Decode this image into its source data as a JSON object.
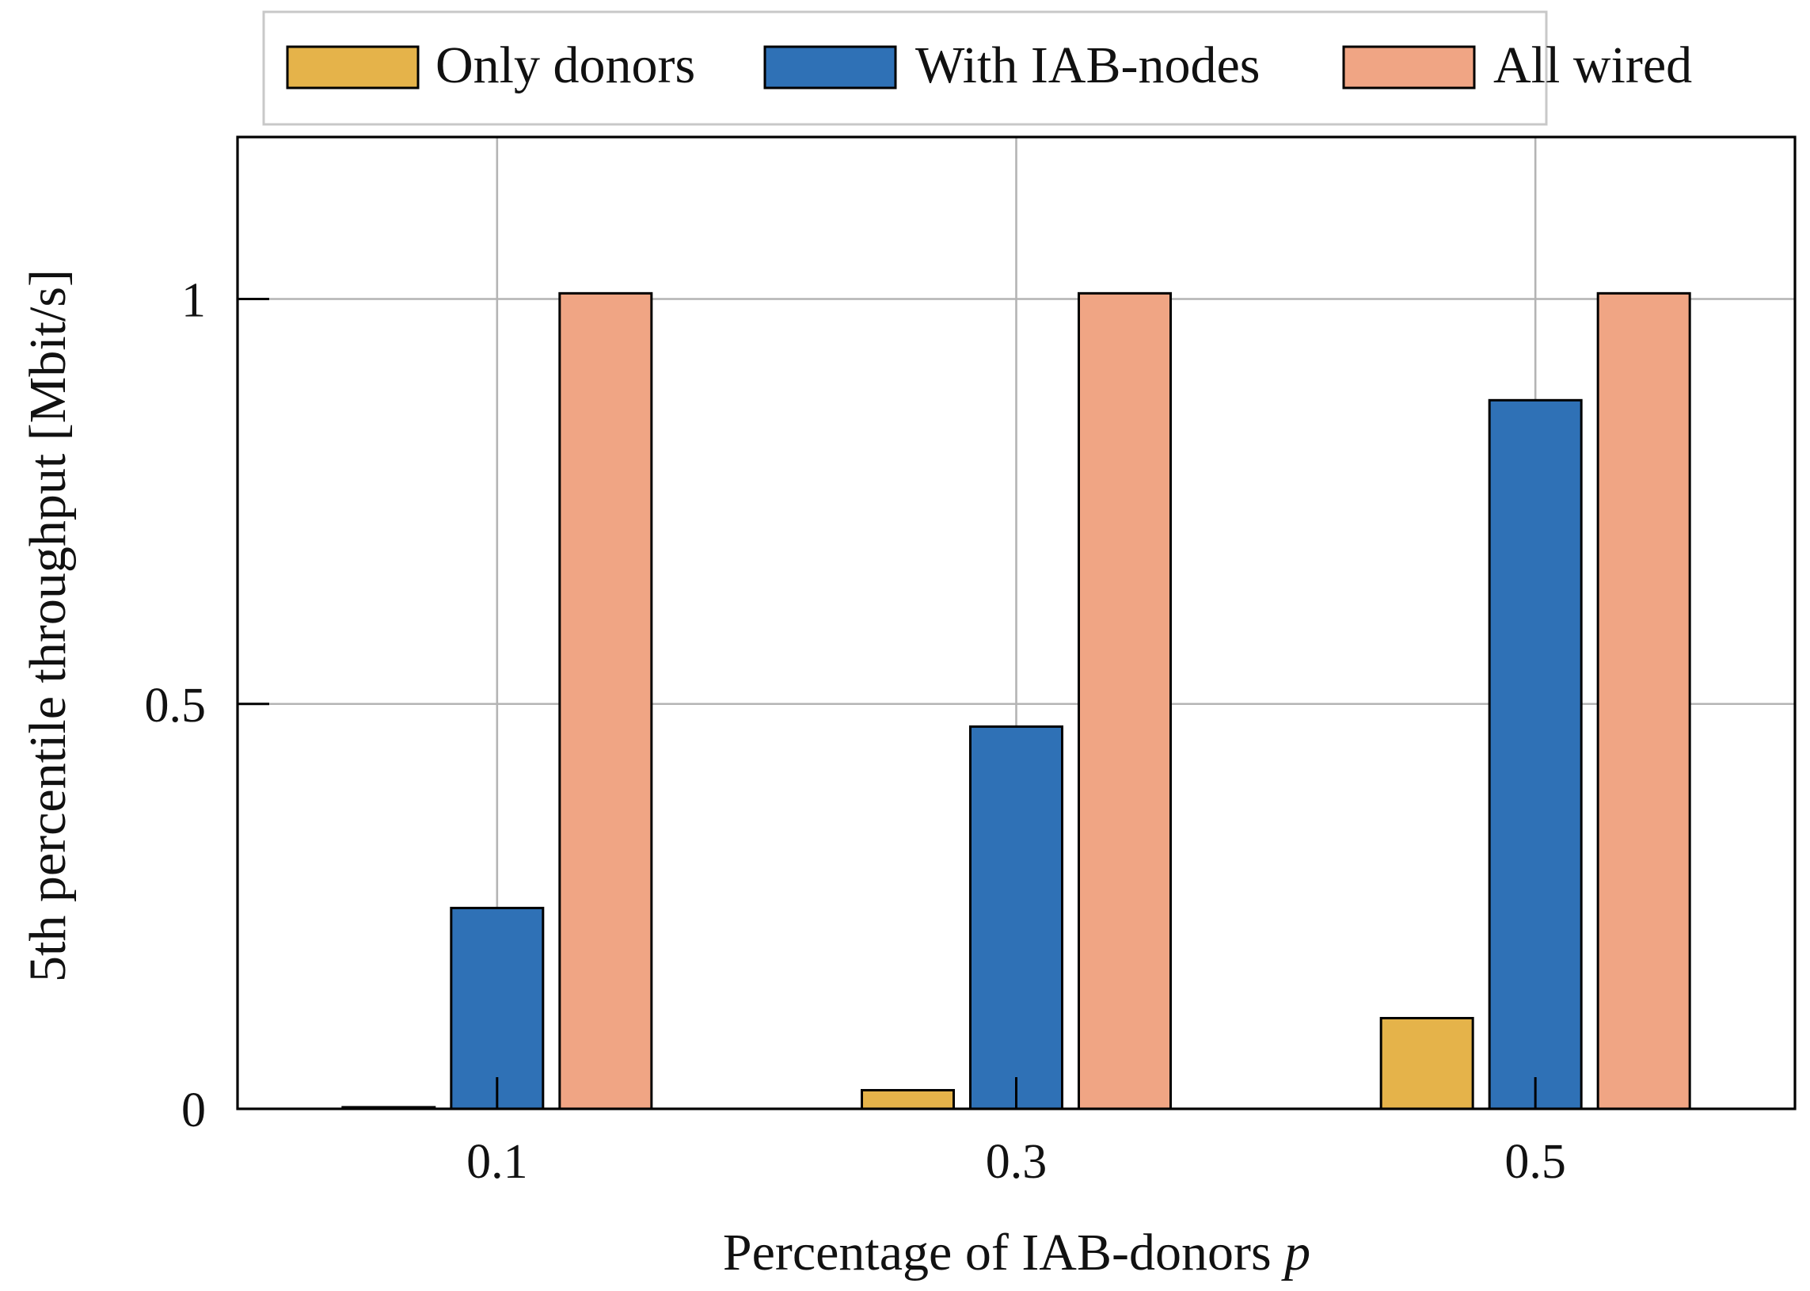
{
  "chart_data": {
    "type": "bar",
    "title": "",
    "xlabel": "Percentage of IAB-donors",
    "xlabel_var": "p",
    "ylabel": "5th percentile throughput [Mbit/s]",
    "categories": [
      "0.1",
      "0.3",
      "0.5"
    ],
    "yticks": [
      0,
      0.5,
      1
    ],
    "ytick_labels": [
      "0",
      "0.5",
      "1"
    ],
    "ylim": [
      0,
      1.2
    ],
    "grid": true,
    "legend_position": "top",
    "series": [
      {
        "name": "Only donors",
        "color": "#E5B34A",
        "values": [
          0.002,
          0.023,
          0.112
        ]
      },
      {
        "name": "With IAB-nodes",
        "color": "#2F71B6",
        "values": [
          0.248,
          0.472,
          0.875
        ]
      },
      {
        "name": "All wired",
        "color": "#F0A584",
        "values": [
          1.007,
          1.007,
          1.007
        ]
      }
    ]
  }
}
